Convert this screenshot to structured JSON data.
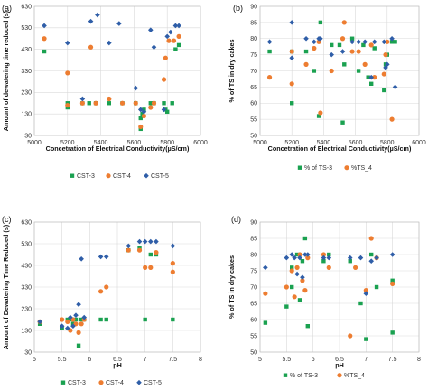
{
  "chart_data": [
    {
      "panel_label": "(a)",
      "type": "scatter",
      "xlabel": "Concetration of Electrical Conductivity(µS/cm)",
      "ylabel": "Amount of dewatering time reduced (s)",
      "xlim": [
        5000,
        6000
      ],
      "ylim": [
        30,
        630
      ],
      "xticks": [
        "5000",
        "5200",
        "5400",
        "5600",
        "5800",
        "6000"
      ],
      "yticks": [
        "30",
        "130",
        "230",
        "330",
        "430",
        "530",
        "630"
      ],
      "grid": true,
      "legend_position": "bottom",
      "series": [
        {
          "name": "CST-3",
          "marker": "square",
          "color": "#1aa150",
          "x": [
            5060,
            5200,
            5200,
            5290,
            5330,
            5370,
            5450,
            5530,
            5610,
            5640,
            5640,
            5650,
            5660,
            5700,
            5720,
            5780,
            5790,
            5800,
            5830,
            5850,
            5870
          ],
          "y": [
            420,
            160,
            180,
            180,
            180,
            180,
            180,
            180,
            180,
            110,
            60,
            130,
            150,
            180,
            180,
            180,
            150,
            140,
            180,
            430,
            450
          ]
        },
        {
          "name": "CST-4",
          "marker": "circle",
          "color": "#ed7d31",
          "x": [
            5060,
            5200,
            5200,
            5290,
            5340,
            5370,
            5450,
            5530,
            5610,
            5640,
            5660,
            5700,
            5720,
            5780,
            5790,
            5810,
            5840,
            5870
          ],
          "y": [
            480,
            320,
            170,
            180,
            440,
            180,
            200,
            180,
            180,
            70,
            120,
            160,
            180,
            290,
            390,
            470,
            470,
            490
          ]
        },
        {
          "name": "CST-5",
          "marker": "diamond",
          "color": "#2f5ea8",
          "x": [
            5060,
            5200,
            5290,
            5340,
            5380,
            5450,
            5510,
            5610,
            5640,
            5660,
            5700,
            5720,
            5780,
            5800,
            5820,
            5850,
            5870
          ],
          "y": [
            540,
            460,
            200,
            560,
            590,
            460,
            550,
            250,
            150,
            140,
            520,
            440,
            150,
            490,
            510,
            540,
            540
          ]
        }
      ]
    },
    {
      "panel_label": "(b)",
      "type": "scatter",
      "xlabel": "Concetration of Electrical Conductivity(µS/cm)",
      "ylabel": "% of TS in dry cakes",
      "xlim": [
        5000,
        6000
      ],
      "ylim": [
        50,
        90
      ],
      "xticks": [
        "5000",
        "5200",
        "5400",
        "5600",
        "5800",
        "6000"
      ],
      "yticks": [
        "50",
        "55",
        "60",
        "65",
        "70",
        "75",
        "80",
        "85",
        "90"
      ],
      "grid": true,
      "legend_position": "bottom",
      "series": [
        {
          "name": "% of TS-3",
          "marker": "square",
          "color": "#1aa150",
          "x": [
            5060,
            5200,
            5200,
            5290,
            5340,
            5370,
            5380,
            5450,
            5500,
            5520,
            5530,
            5580,
            5620,
            5650,
            5680,
            5700,
            5720,
            5780,
            5790,
            5800,
            5830,
            5850
          ],
          "y": [
            76,
            76,
            60,
            76,
            70,
            56,
            85,
            78,
            78,
            54,
            72,
            80,
            70,
            78,
            68,
            66,
            77,
            64,
            72,
            75,
            79,
            79
          ]
        },
        {
          "name": "%TS_4",
          "marker": "circle",
          "color": "#ed7d31",
          "x": [
            5060,
            5200,
            5200,
            5290,
            5340,
            5370,
            5380,
            5450,
            5520,
            5530,
            5580,
            5620,
            5660,
            5700,
            5720,
            5780,
            5790,
            5800,
            5830
          ],
          "y": [
            68,
            66,
            76,
            72,
            77,
            79,
            57,
            70,
            80,
            85,
            76,
            76,
            72,
            78,
            68,
            69,
            75,
            79,
            55
          ]
        },
        {
          "name": "% of TS-3",
          "marker": "diamond",
          "color": "#2f5ea8",
          "x": [
            5060,
            5200,
            5200,
            5290,
            5340,
            5370,
            5380,
            5450,
            5520,
            5580,
            5620,
            5660,
            5700,
            5720,
            5780,
            5790,
            5800,
            5830,
            5850
          ],
          "y": [
            79,
            85,
            74,
            80,
            79,
            80,
            80,
            75,
            76,
            79,
            79,
            79,
            68,
            79,
            79,
            71,
            72,
            80,
            65
          ]
        }
      ]
    },
    {
      "panel_label": "(c)",
      "type": "scatter",
      "xlabel": "pH",
      "ylabel": "Amount of Dewatering Time Reduced (s)",
      "xlim": [
        5,
        8
      ],
      "ylim": [
        30,
        630
      ],
      "xticks": [
        "5",
        "5.5",
        "6",
        "6.5",
        "7",
        "7.5",
        "8"
      ],
      "yticks": [
        "30",
        "130",
        "230",
        "330",
        "430",
        "530",
        "630"
      ],
      "grid": true,
      "legend_position": "bottom",
      "series": [
        {
          "name": "CST-3",
          "marker": "square",
          "color": "#1aa150",
          "x": [
            5.1,
            5.5,
            5.6,
            5.65,
            5.7,
            5.75,
            5.8,
            5.85,
            5.9,
            6.2,
            6.3,
            6.7,
            6.9,
            7.0,
            7.1,
            7.2,
            7.5
          ],
          "y": [
            160,
            140,
            180,
            180,
            160,
            180,
            60,
            180,
            180,
            180,
            180,
            500,
            510,
            180,
            480,
            480,
            180
          ]
        },
        {
          "name": "CST-4",
          "marker": "circle",
          "color": "#ed7d31",
          "x": [
            5.1,
            5.5,
            5.6,
            5.65,
            5.7,
            5.75,
            5.8,
            5.85,
            5.9,
            6.2,
            6.3,
            6.7,
            6.9,
            7.0,
            7.1,
            7.2,
            7.5,
            7.5
          ],
          "y": [
            170,
            180,
            170,
            130,
            180,
            160,
            120,
            160,
            180,
            310,
            330,
            500,
            500,
            420,
            420,
            490,
            440,
            400
          ]
        },
        {
          "name": "CST-5",
          "marker": "diamond",
          "color": "#2f5ea8",
          "x": [
            5.1,
            5.5,
            5.6,
            5.65,
            5.7,
            5.75,
            5.8,
            5.85,
            5.9,
            6.2,
            6.3,
            6.7,
            6.9,
            7.0,
            7.1,
            7.2,
            7.5
          ],
          "y": [
            170,
            150,
            140,
            190,
            150,
            200,
            250,
            460,
            190,
            470,
            470,
            520,
            540,
            540,
            540,
            540,
            520
          ]
        }
      ]
    },
    {
      "panel_label": "(d)",
      "type": "scatter",
      "xlabel": "pH",
      "ylabel": "% of TS in dry cakes",
      "xlim": [
        5,
        8
      ],
      "ylim": [
        50,
        90
      ],
      "xticks": [
        "5",
        "5.5",
        "6",
        "6.5",
        "7",
        "7.5",
        "8"
      ],
      "yticks": [
        "50",
        "55",
        "60",
        "65",
        "70",
        "75",
        "80",
        "85",
        "90"
      ],
      "grid": true,
      "legend_position": "bottom",
      "series": [
        {
          "name": "% of TS-3",
          "marker": "square",
          "color": "#1aa150",
          "x": [
            5.1,
            5.5,
            5.6,
            5.6,
            5.7,
            5.75,
            5.8,
            5.85,
            5.9,
            6.2,
            6.3,
            6.7,
            6.9,
            7.0,
            7.1,
            7.2,
            7.5,
            7.5
          ],
          "y": [
            59,
            64,
            70,
            76,
            80,
            66,
            78,
            85,
            58,
            78,
            80,
            78,
            65,
            54,
            80,
            70,
            72,
            56
          ]
        },
        {
          "name": "%TS_4",
          "marker": "circle",
          "color": "#ed7d31",
          "x": [
            5.1,
            5.5,
            5.6,
            5.65,
            5.7,
            5.75,
            5.8,
            5.85,
            5.9,
            6.2,
            6.3,
            6.7,
            6.8,
            7.0,
            7.1,
            7.2,
            7.5
          ],
          "y": [
            68,
            70,
            75,
            67,
            76,
            80,
            72,
            69,
            79,
            80,
            76,
            55,
            76,
            69,
            85,
            79,
            71
          ]
        },
        {
          "name": "% of TS-3",
          "marker": "diamond",
          "color": "#2f5ea8",
          "x": [
            5.1,
            5.5,
            5.6,
            5.65,
            5.7,
            5.75,
            5.8,
            5.85,
            5.9,
            6.2,
            6.3,
            6.7,
            6.9,
            7.0,
            7.1,
            7.2,
            7.5
          ],
          "y": [
            76,
            79,
            80,
            79,
            74,
            79,
            73,
            80,
            80,
            79,
            79,
            79,
            79,
            68,
            78,
            79,
            80
          ]
        }
      ]
    }
  ]
}
